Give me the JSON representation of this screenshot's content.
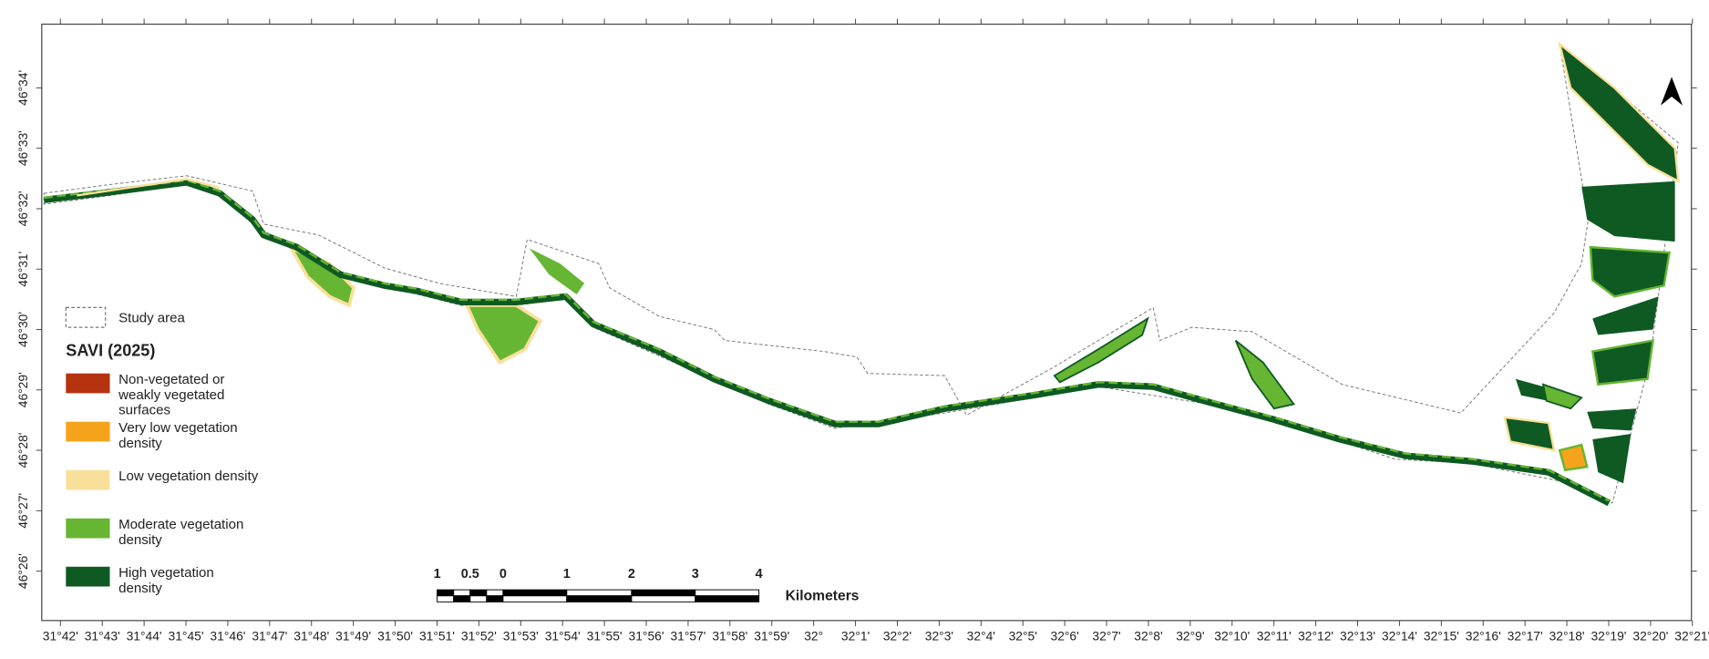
{
  "map": {
    "x_labels": [
      "31°42'",
      "31°43'",
      "31°44'",
      "31°45'",
      "31°46'",
      "31°47'",
      "31°48'",
      "31°49'",
      "31°50'",
      "31°51'",
      "31°52'",
      "31°53'",
      "31°54'",
      "31°55'",
      "31°56'",
      "31°57'",
      "31°58'",
      "31°59'",
      "32°",
      "32°1'",
      "32°2'",
      "32°3'",
      "32°4'",
      "32°5'",
      "32°6'",
      "32°7'",
      "32°8'",
      "32°9'",
      "32°10'",
      "32°11'",
      "32°12'",
      "32°13'",
      "32°14'",
      "32°15'",
      "32°16'",
      "32°17'",
      "32°18'",
      "32°19'",
      "32°20'",
      "32°21'"
    ],
    "y_labels": [
      "46°34'",
      "46°33'",
      "46°32'",
      "46°31'",
      "46°30'",
      "46°29'",
      "46°28'",
      "46°27'",
      "46°26'"
    ],
    "legend": {
      "study_area": "Study area",
      "title": "SAVI (2025)",
      "classes": [
        {
          "label": "Non-vegetated or weakly vegetated surfaces",
          "color": "#b5330e"
        },
        {
          "label": "Very low vegetation density",
          "color": "#f5a31a"
        },
        {
          "label": "Low vegetation density",
          "color": "#f9e09a"
        },
        {
          "label": "Moderate vegetation density",
          "color": "#66b533"
        },
        {
          "label": "High vegetation density",
          "color": "#0e5a22"
        }
      ]
    },
    "scale_bar": {
      "labels": [
        "1",
        "0.5",
        "0",
        "1",
        "2",
        "3",
        "4"
      ],
      "unit": "Kilometers"
    }
  }
}
